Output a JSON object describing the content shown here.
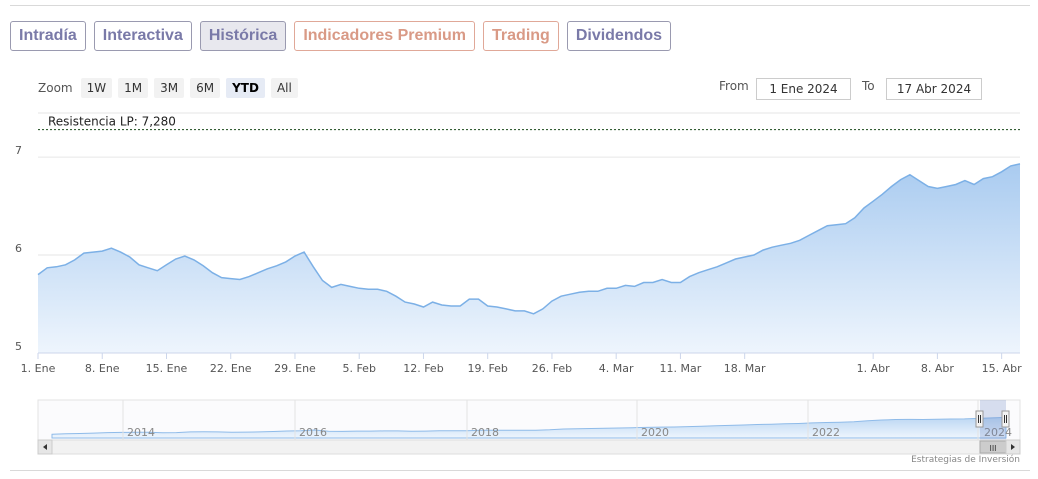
{
  "tabs": [
    {
      "label": "Intradía",
      "style": "blue"
    },
    {
      "label": "Interactiva",
      "style": "blue"
    },
    {
      "label": "Histórica",
      "style": "active"
    },
    {
      "label": "Indicadores Premium",
      "style": "salmon"
    },
    {
      "label": "Trading",
      "style": "salmon"
    },
    {
      "label": "Dividendos",
      "style": "blue"
    }
  ],
  "zoom": {
    "label": "Zoom",
    "buttons": [
      "1W",
      "1M",
      "3M",
      "6M",
      "YTD",
      "All"
    ],
    "selected": "YTD"
  },
  "range": {
    "from_label": "From",
    "from_value": "1 Ene 2024",
    "to_label": "To",
    "to_value": "17 Abr 2024"
  },
  "credit": "Estrategias de Inversión",
  "colors": {
    "line": "#7cb0e6",
    "fill_top": "#a9cbf0",
    "fill_bottom": "#eef5fd",
    "resistance": "#1a4a1a",
    "tab_blue": "#7a7aa8",
    "tab_salmon": "#d99a86"
  },
  "chart_data": {
    "type": "area",
    "ylim": [
      5,
      7.45
    ],
    "yticks": [
      5,
      6,
      7
    ],
    "xlim": [
      0,
      107
    ],
    "xticks": [
      {
        "x": 0,
        "label": "1. Ene"
      },
      {
        "x": 7,
        "label": "8. Ene"
      },
      {
        "x": 14,
        "label": "15. Ene"
      },
      {
        "x": 21,
        "label": "22. Ene"
      },
      {
        "x": 28,
        "label": "29. Ene"
      },
      {
        "x": 35,
        "label": "5. Feb"
      },
      {
        "x": 42,
        "label": "12. Feb"
      },
      {
        "x": 49,
        "label": "19. Feb"
      },
      {
        "x": 56,
        "label": "26. Feb"
      },
      {
        "x": 63,
        "label": "4. Mar"
      },
      {
        "x": 70,
        "label": "11. Mar"
      },
      {
        "x": 77,
        "label": "18. Mar"
      },
      {
        "x": 91,
        "label": "1. Abr"
      },
      {
        "x": 98,
        "label": "8. Abr"
      },
      {
        "x": 105,
        "label": "15. Abr"
      }
    ],
    "x": [
      0,
      1,
      2,
      3,
      4,
      5,
      6,
      7,
      8,
      9,
      10,
      11,
      12,
      13,
      14,
      15,
      16,
      17,
      18,
      19,
      20,
      21,
      22,
      23,
      24,
      25,
      26,
      27,
      28,
      29,
      30,
      31,
      32,
      33,
      34,
      35,
      36,
      37,
      38,
      39,
      40,
      41,
      42,
      43,
      44,
      45,
      46,
      47,
      48,
      49,
      50,
      51,
      52,
      53,
      54,
      55,
      56,
      57,
      58,
      59,
      60,
      61,
      62,
      63,
      64,
      65,
      66,
      67,
      68,
      69,
      70,
      71,
      72,
      73,
      74,
      75,
      76,
      77,
      78,
      79,
      80,
      81,
      82,
      83,
      84,
      85,
      86,
      87,
      88,
      89,
      90,
      91,
      92,
      93,
      94,
      95,
      96,
      97,
      98,
      99,
      100,
      101,
      102,
      103,
      104,
      105,
      106,
      107
    ],
    "values": [
      5.8,
      5.87,
      5.88,
      5.9,
      5.95,
      6.02,
      6.03,
      6.04,
      6.07,
      6.03,
      5.98,
      5.9,
      5.87,
      5.84,
      5.9,
      5.96,
      5.99,
      5.95,
      5.89,
      5.82,
      5.77,
      5.76,
      5.75,
      5.78,
      5.82,
      5.86,
      5.89,
      5.93,
      5.99,
      6.03,
      5.88,
      5.74,
      5.67,
      5.7,
      5.68,
      5.66,
      5.65,
      5.65,
      5.63,
      5.58,
      5.52,
      5.5,
      5.47,
      5.52,
      5.49,
      5.48,
      5.48,
      5.55,
      5.55,
      5.48,
      5.47,
      5.45,
      5.43,
      5.43,
      5.4,
      5.45,
      5.53,
      5.58,
      5.6,
      5.62,
      5.63,
      5.63,
      5.66,
      5.66,
      5.69,
      5.68,
      5.72,
      5.72,
      5.75,
      5.72,
      5.72,
      5.78,
      5.82,
      5.85,
      5.88,
      5.92,
      5.96,
      5.98,
      6.0,
      6.05,
      6.08,
      6.1,
      6.12,
      6.15,
      6.2,
      6.25,
      6.3,
      6.31,
      6.32,
      6.38,
      6.48,
      6.55,
      6.62,
      6.7,
      6.77,
      6.82,
      6.76,
      6.7,
      6.68,
      6.7,
      6.72,
      6.76,
      6.72,
      6.78,
      6.8,
      6.85,
      6.91,
      6.93
    ],
    "annotations": [
      {
        "type": "hline",
        "y": 7.28,
        "label": "Resistencia LP: 7,280",
        "style": "dotted"
      }
    ],
    "navigator": {
      "x_labels": [
        "2014",
        "2016",
        "2018",
        "2020",
        "2022",
        "2024"
      ],
      "scroll_handle": "III"
    }
  }
}
